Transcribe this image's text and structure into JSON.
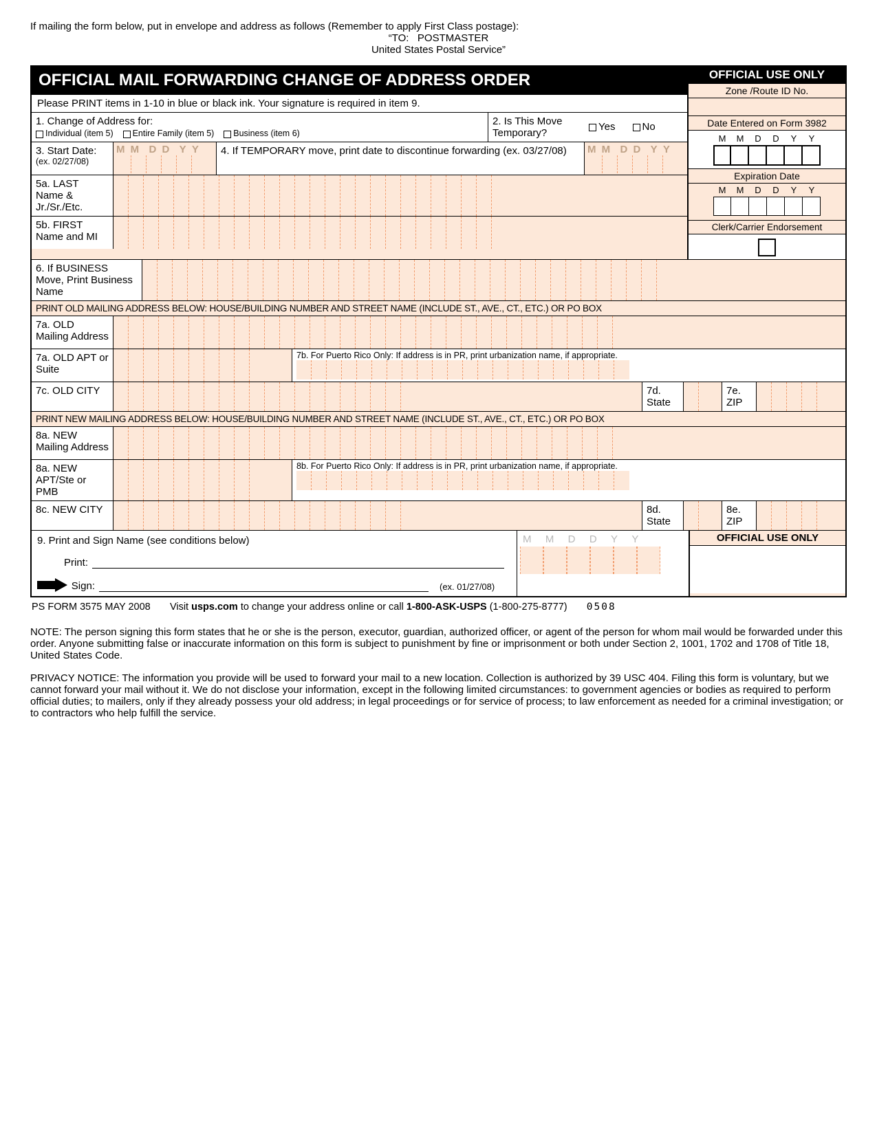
{
  "mailing": {
    "line1": "If mailing the form below, put in envelope and address as follows (Remember to apply First Class postage):",
    "line2": "“TO:   POSTMASTER",
    "line3": "United States Postal Service”"
  },
  "form": {
    "title": "OFFICIAL MAIL FORWARDING CHANGE OF ADDRESS ORDER",
    "official_use_only": "OFFICIAL USE ONLY",
    "instructions": "Please PRINT items in 1-10 in blue or black ink. Your signature is required in item 9.",
    "q1": {
      "label": "1. Change of Address for:",
      "opt_individual": "Individual (item 5)",
      "opt_family": "Entire Family (item 5)",
      "opt_business": "Business (item 6)"
    },
    "q2": {
      "label": "2. Is This Move Temporary?",
      "yes": "Yes",
      "no": "No"
    },
    "q3": {
      "label": "3. Start Date:",
      "ex": "(ex. 02/27/08)",
      "hint": "M M  D D  Y Y"
    },
    "q4": {
      "label": "4.  If TEMPORARY move,  print date to discontinue forwarding (ex. 03/27/08)",
      "hint": "M M  D D  Y Y"
    },
    "q5a": "5a. LAST Name & Jr./Sr./Etc.",
    "q5b": "5b. FIRST Name and MI",
    "q6": "6. If BUSINESS Move, Print Business Name",
    "old_head": "PRINT OLD MAILING ADDRESS BELOW:  HOUSE/BUILDING NUMBER AND STREET NAME (INCLUDE ST., AVE., CT., ETC.) OR PO BOX",
    "q7a": "7a. OLD Mailing Address",
    "q7a2": "7a. OLD APT or Suite",
    "q7b": "7b. For Puerto Rico Only:  If address is in PR, print urbanization name, if appropriate.",
    "q7c": "7c. OLD CITY",
    "q7d": "7d. State",
    "q7e": "7e. ZIP",
    "new_head": "PRINT NEW MAILING ADDRESS BELOW:  HOUSE/BUILDING NUMBER AND STREET NAME (INCLUDE ST., AVE., CT., ETC.) OR PO BOX",
    "q8a": "8a. NEW Mailing Address",
    "q8a2": "8a. NEW APT/Ste or PMB",
    "q8b": "8b. For Puerto Rico Only:  If address is in PR, print urbanization name, if appropriate.",
    "q8c": "8c. NEW CITY",
    "q8d": "8d. State",
    "q8e": "8e. ZIP",
    "q9": {
      "label": "9. Print and Sign Name (see conditions below)",
      "print": "Print:",
      "sign": "Sign:",
      "ex": "(ex. 01/27/08)",
      "hint": "M   M    D    D    Y    Y"
    },
    "right": {
      "zone": "Zone /Route ID No.",
      "date3982": "Date Entered on Form 3982",
      "mmddyy": "M   M   D   D   Y   Y",
      "exp": "Expiration Date",
      "endorse": "Clerk/Carrier Endorsement"
    },
    "footer": {
      "form_no": "PS FORM 3575 MAY 2008",
      "visit_pre": "Visit ",
      "visit_bold": "usps.com",
      "visit_mid": " to change your address online or call ",
      "phone_bold": "1-800-ASK-USPS",
      "phone_suffix": " (1-800-275-8777)",
      "code": "0508"
    },
    "note": "NOTE:  The person signing this form states that he or she is the person, executor, guardian, authorized officer, or agent of the person for whom mail would be forwarded under this order. Anyone submitting false or inaccurate information on this form is subject to punishment by fine or imprisonment or both under Section 2, 1001, 1702 and 1708 of Title 18, United States Code.",
    "privacy": "PRIVACY NOTICE:  The information you provide will be used to forward your mail to a new location. Collection is authorized by 39 USC 404. Filing this form is voluntary, but we cannot forward your mail without it. We do not disclose your information, except in the following limited circumstances:  to government agencies or bodies as required to perform official duties; to mailers, only if they already possess your old address; in legal proceedings or for service of process; to law enforcement as needed for a criminal investigation; or to contractors who help fulfill the service."
  },
  "style": {
    "comb_counts": {
      "name_row": 26,
      "business": 30,
      "addr_full": 34,
      "apt": 10,
      "pr": 22,
      "city": 20,
      "state": 2,
      "zip": 5
    }
  }
}
